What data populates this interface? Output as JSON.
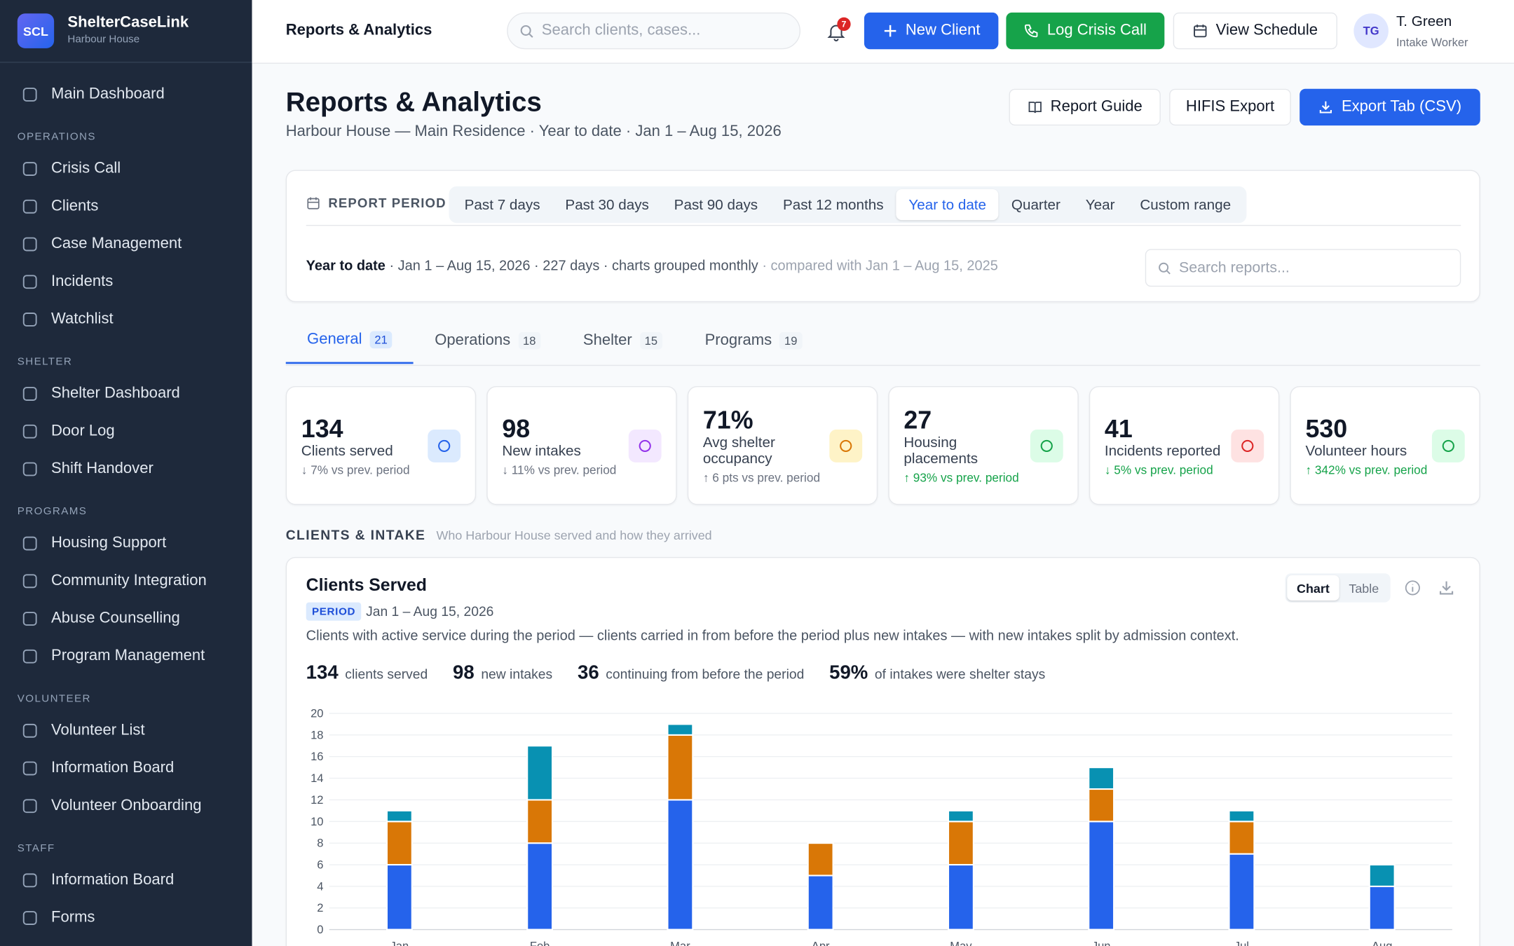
{
  "brand": {
    "logo": "SCL",
    "name": "ShelterCaseLink",
    "org": "Harbour House"
  },
  "sidebar": {
    "top": "Main Dashboard",
    "sections": [
      {
        "title": "OPERATIONS",
        "items": [
          "Crisis Call",
          "Clients",
          "Case Management",
          "Incidents",
          "Watchlist"
        ]
      },
      {
        "title": "SHELTER",
        "items": [
          "Shelter Dashboard",
          "Door Log",
          "Shift Handover"
        ]
      },
      {
        "title": "PROGRAMS",
        "items": [
          "Housing Support",
          "Community Integration",
          "Abuse Counselling",
          "Program Management"
        ]
      },
      {
        "title": "VOLUNTEER",
        "items": [
          "Volunteer List",
          "Information Board",
          "Volunteer Onboarding"
        ]
      },
      {
        "title": "STAFF",
        "items": [
          "Information Board",
          "Forms"
        ]
      }
    ]
  },
  "topbar": {
    "title": "Reports & Analytics",
    "search": "Search clients, cases...",
    "notifications": "7",
    "buttons": [
      "New Client",
      "Log Crisis Call",
      "View Schedule"
    ],
    "user": {
      "initials": "TG",
      "name": "T. Green",
      "role": "Intake Worker"
    }
  },
  "header": {
    "title": "Reports & Analytics",
    "subtitle": "Harbour House — Main Residence · Year to date · Jan 1 – Aug 15, 2026",
    "actions": [
      "Report Guide",
      "HIFIS Export",
      "Export Tab (CSV)"
    ]
  },
  "period": {
    "label": "REPORT PERIOD",
    "options": [
      "Past 7 days",
      "Past 30 days",
      "Past 90 days",
      "Past 12 months",
      "Year to date",
      "Quarter",
      "Year",
      "Custom range"
    ],
    "active": "Year to date",
    "summary": {
      "strong": "Year to date",
      "detail": " · Jan 1 – Aug 15, 2026 · 227 days · charts grouped monthly",
      "compare": " · compared with Jan 1 – Aug 15, 2025"
    },
    "search": "Search reports..."
  },
  "tabs": [
    {
      "label": "General",
      "count": "21"
    },
    {
      "label": "Operations",
      "count": "18"
    },
    {
      "label": "Shelter",
      "count": "15"
    },
    {
      "label": "Programs",
      "count": "19"
    }
  ],
  "active_tab": "General",
  "kpis": [
    {
      "value": "134",
      "label": "Clients served",
      "delta": "↓ 7% vs prev. period",
      "tone": "neutral",
      "accent": "#2563eb",
      "tint": "#dbeafe"
    },
    {
      "value": "98",
      "label": "New intakes",
      "delta": "↓ 11% vs prev. period",
      "tone": "neutral",
      "accent": "#9333ea",
      "tint": "#f3e8ff"
    },
    {
      "value": "71%",
      "label": "Avg shelter occupancy",
      "delta": "↑ 6 pts vs prev. period",
      "tone": "neutral",
      "accent": "#d97706",
      "tint": "#fef3c7"
    },
    {
      "value": "27",
      "label": "Housing placements",
      "delta": "↑ 93% vs prev. period",
      "tone": "positive",
      "accent": "#16a34a",
      "tint": "#dcfce7"
    },
    {
      "value": "41",
      "label": "Incidents reported",
      "delta": "↓ 5% vs prev. period",
      "tone": "positive",
      "accent": "#dc2626",
      "tint": "#fee2e2"
    },
    {
      "value": "530",
      "label": "Volunteer hours",
      "delta": "↑ 342% vs prev. period",
      "tone": "positive",
      "accent": "#16a34a",
      "tint": "#dcfce7"
    }
  ],
  "section": {
    "title": "CLIENTS & INTAKE",
    "subtitle": "Who Harbour House served and how they arrived"
  },
  "card": {
    "title": "Clients Served",
    "badge": "PERIOD",
    "range": "Jan 1 – Aug 15, 2026",
    "description": "Clients with active service during the period — clients carried in from before the period plus new intakes — with new intakes split by admission context.",
    "views": [
      "Chart",
      "Table"
    ],
    "active_view": "Chart",
    "stats": [
      {
        "value": "134",
        "label": "clients served"
      },
      {
        "value": "98",
        "label": "new intakes"
      },
      {
        "value": "36",
        "label": "continuing from before the period"
      },
      {
        "value": "59%",
        "label": "of intakes were shelter stays"
      }
    ]
  },
  "chart_data": {
    "type": "bar",
    "stacked": true,
    "categories": [
      "Jan",
      "Feb",
      "Mar",
      "Apr",
      "May",
      "Jun",
      "Jul",
      "Aug"
    ],
    "series": [
      {
        "color": "#2563eb",
        "values": [
          6,
          8,
          12,
          5,
          6,
          10,
          7,
          4
        ]
      },
      {
        "color": "#d97706",
        "values": [
          4,
          4,
          6,
          3,
          4,
          3,
          3,
          0
        ]
      },
      {
        "color": "#0891b2",
        "values": [
          1,
          5,
          1,
          0,
          1,
          2,
          1,
          2
        ]
      }
    ],
    "ylim": [
      0,
      20
    ],
    "yticks": [
      0,
      2,
      4,
      6,
      8,
      10,
      12,
      14,
      16,
      18,
      20
    ],
    "grid": true
  }
}
